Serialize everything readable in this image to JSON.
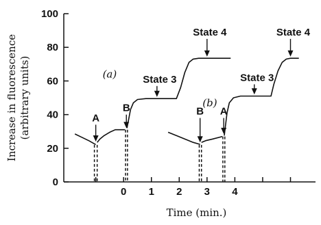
{
  "chart_data": {
    "type": "line",
    "title": "",
    "xlabel": "Time (min.)",
    "ylabel": [
      "Increase in fluorescence",
      "(arbitrary units)"
    ],
    "ylim": [
      0,
      100
    ],
    "xlim": [
      -2.15,
      6.9
    ],
    "yticks": [
      0,
      20,
      40,
      60,
      80,
      100
    ],
    "xticks": [
      {
        "value": 0,
        "label": "0"
      },
      {
        "value": 1,
        "label": "1"
      },
      {
        "value": 2,
        "label": "2"
      },
      {
        "value": 3,
        "label": "3"
      },
      {
        "value": 4,
        "label": "4"
      }
    ],
    "minor_xticks": [
      -1,
      5,
      6
    ],
    "grid": false,
    "colors": {
      "line": "#111111",
      "background": "#ffffff"
    },
    "series": [
      {
        "panel": "(a)",
        "segments": [
          [
            [
              -1.75,
              28.5
            ],
            [
              -1.5,
              26.5
            ],
            [
              -1.25,
              24.5
            ],
            [
              -1.0,
              22.2
            ]
          ],
          [
            [
              -0.95,
              23.5
            ],
            [
              -0.85,
              25.5
            ],
            [
              -0.7,
              27.5
            ],
            [
              -0.5,
              29.5
            ],
            [
              -0.3,
              31
            ],
            [
              0.05,
              31
            ]
          ],
          [
            [
              0.12,
              32
            ],
            [
              0.18,
              37
            ],
            [
              0.25,
              43
            ],
            [
              0.35,
              47
            ],
            [
              0.5,
              49
            ],
            [
              0.8,
              49.5
            ],
            [
              1.9,
              49.5
            ],
            [
              2.05,
              56
            ],
            [
              2.2,
              65
            ],
            [
              2.35,
              71
            ],
            [
              2.5,
              73
            ],
            [
              2.7,
              73.5
            ],
            [
              3.85,
              73.5
            ]
          ]
        ]
      },
      {
        "panel": "(b)",
        "segments": [
          [
            [
              1.6,
              29.5
            ],
            [
              1.9,
              27.5
            ],
            [
              2.2,
              25.5
            ],
            [
              2.5,
              23.5
            ],
            [
              2.75,
              22.3
            ]
          ],
          [
            [
              2.8,
              23.5
            ],
            [
              2.95,
              24.5
            ],
            [
              3.2,
              25.5
            ],
            [
              3.55,
              27
            ]
          ],
          [
            [
              3.62,
              27.5
            ],
            [
              3.66,
              33
            ],
            [
              3.72,
              41
            ],
            [
              3.8,
              47
            ],
            [
              3.95,
              50
            ],
            [
              4.2,
              51
            ],
            [
              5.3,
              51
            ],
            [
              5.4,
              58
            ],
            [
              5.55,
              66
            ],
            [
              5.7,
              71
            ],
            [
              5.85,
              73
            ],
            [
              6.0,
              73.5
            ],
            [
              6.3,
              73.5
            ]
          ]
        ]
      }
    ],
    "vertical_traces": [
      {
        "x": -1.05,
        "dashed": true,
        "from": 22,
        "to": 0
      },
      {
        "x": -0.95,
        "dashed": true,
        "from": 22,
        "to": 0
      },
      {
        "x": 0.07,
        "dashed": true,
        "from": 31,
        "to": 0
      },
      {
        "x": 0.14,
        "dashed": true,
        "from": 31,
        "to": 0
      },
      {
        "x": 2.72,
        "dashed": true,
        "from": 22,
        "to": 0
      },
      {
        "x": 2.8,
        "dashed": true,
        "from": 22,
        "to": 0
      },
      {
        "x": 3.57,
        "dashed": true,
        "from": 27,
        "to": 0
      },
      {
        "x": 3.64,
        "dashed": true,
        "from": 27,
        "to": 0
      }
    ],
    "annotations": [
      {
        "text": "A",
        "arrow_x": -1.0,
        "arrow_y_from": 34,
        "arrow_y_to": 24
      },
      {
        "text": "B",
        "arrow_x": 0.1,
        "arrow_y_from": 40,
        "arrow_y_to": 32
      },
      {
        "text": "State 3",
        "arrow_x": 1.2,
        "arrow_y_from": 57,
        "arrow_y_to": 50.5
      },
      {
        "text": "State 4",
        "arrow_x": 3.0,
        "arrow_y_from": 85,
        "arrow_y_to": 74.5
      },
      {
        "text": "B",
        "arrow_x": 2.75,
        "arrow_y_from": 38,
        "arrow_y_to": 23.5
      },
      {
        "text": "A",
        "arrow_x": 3.6,
        "arrow_y_from": 38,
        "arrow_y_to": 28.5
      },
      {
        "text": "State 3",
        "arrow_x": 4.7,
        "arrow_y_from": 58,
        "arrow_y_to": 52
      },
      {
        "text": "State 4",
        "arrow_x": 6.0,
        "arrow_y_from": 85,
        "arrow_y_to": 74.5
      }
    ],
    "panel_labels": [
      {
        "text": "(a)",
        "x": -0.5,
        "y": 62
      },
      {
        "text": "(b)",
        "x": 3.1,
        "y": 45
      }
    ]
  }
}
